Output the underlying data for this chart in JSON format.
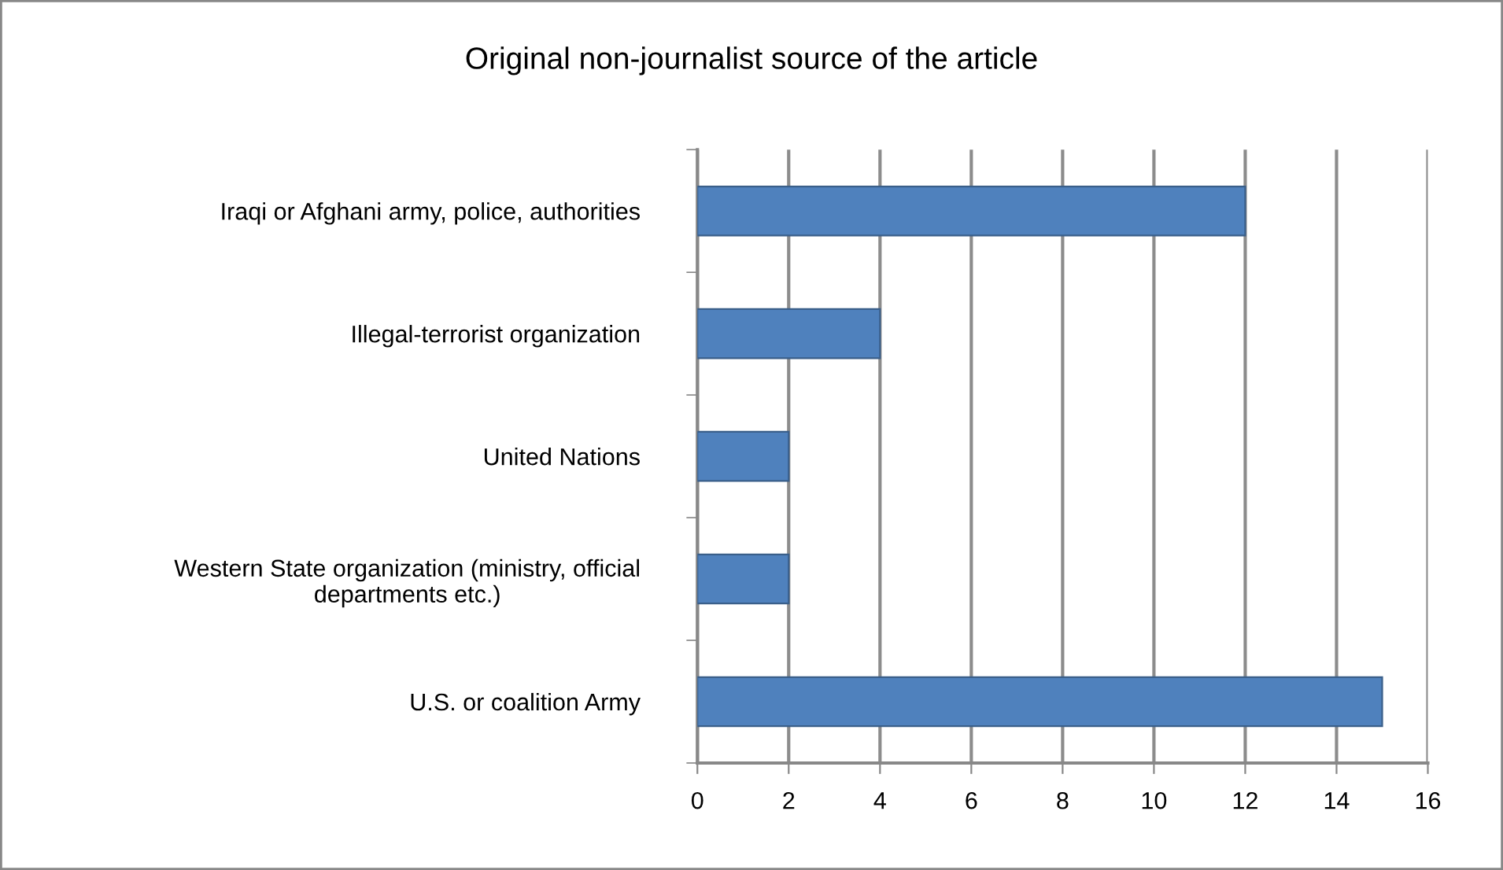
{
  "chart_data": {
    "type": "bar",
    "orientation": "horizontal",
    "title": "Original non-journalist source of the article",
    "categories": [
      "Iraqi or Afghani army, police, authorities",
      "Illegal-terrorist organization",
      "United Nations",
      "Western State organization (ministry, official\ndepartments etc.)",
      "U.S. or coalition Army"
    ],
    "values": [
      12,
      4,
      2,
      2,
      15
    ],
    "color": "#4f81bd",
    "xlim": [
      0,
      16
    ],
    "xticks": [
      0,
      2,
      4,
      6,
      8,
      10,
      12,
      14,
      16
    ],
    "grid": "x",
    "legend": false
  }
}
